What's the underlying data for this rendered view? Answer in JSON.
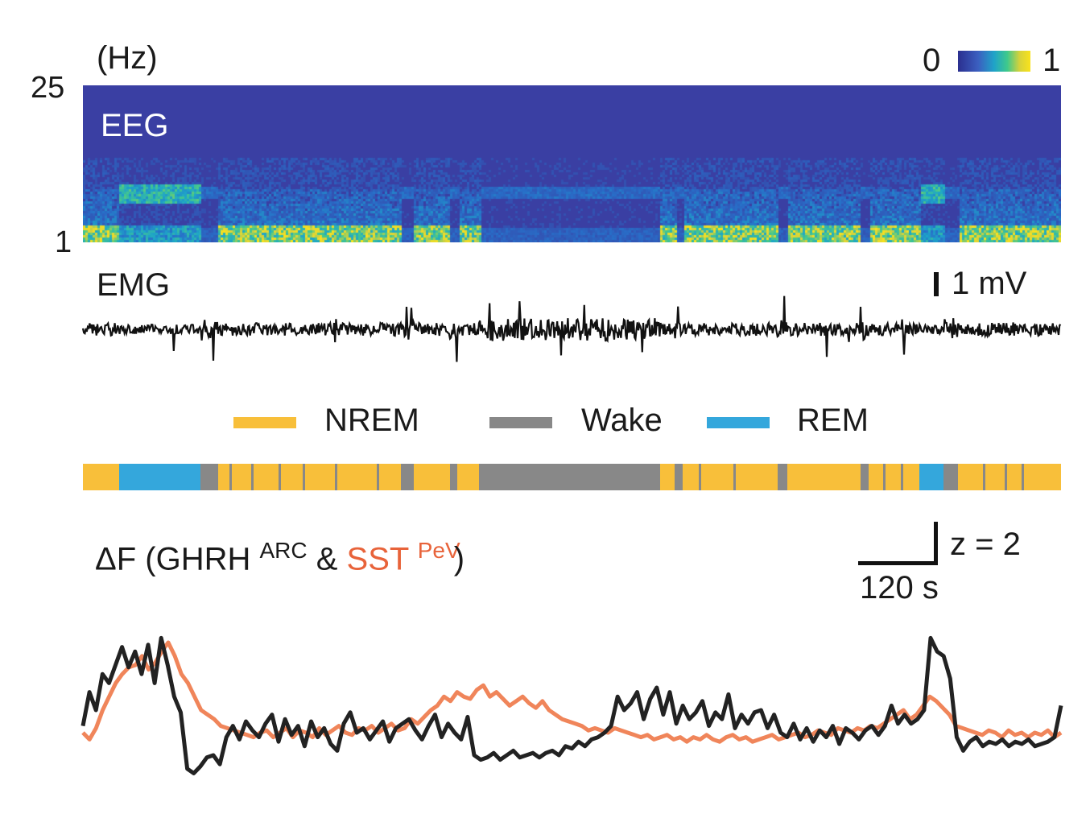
{
  "chart_data": [
    {
      "type": "heatmap",
      "title": "EEG",
      "ylabel": "(Hz)",
      "ylim": [
        1,
        25
      ],
      "y_ticks": [
        "25",
        "1"
      ],
      "colorbar": {
        "min": "0",
        "max": "1",
        "colors": [
          "#2b2f8f",
          "#3b5fc0",
          "#1fa3c8",
          "#3ec98c",
          "#d6d23a",
          "#f9e21c"
        ]
      },
      "background_color": "#3a3fa3",
      "bands_note": "high power at low frequency during NREM, theta band during REM"
    },
    {
      "type": "line",
      "title": "EMG",
      "scale_bar": "1 mV",
      "color": "#111111"
    },
    {
      "type": "bar",
      "legend": [
        {
          "name": "NREM",
          "color": "#f8bf3a"
        },
        {
          "name": "Wake",
          "color": "#888888"
        },
        {
          "name": "REM",
          "color": "#34a7dc"
        }
      ],
      "hypnogram": [
        {
          "state": "NREM",
          "start": 0,
          "end": 3.7
        },
        {
          "state": "REM",
          "start": 3.7,
          "end": 12.0
        },
        {
          "state": "Wake",
          "start": 12.0,
          "end": 13.8
        },
        {
          "state": "NREM",
          "start": 13.8,
          "end": 32.5
        },
        {
          "state": "Wake",
          "start": 32.5,
          "end": 33.8
        },
        {
          "state": "NREM",
          "start": 33.8,
          "end": 37.5
        },
        {
          "state": "Wake",
          "start": 37.5,
          "end": 38.3
        },
        {
          "state": "NREM",
          "start": 38.3,
          "end": 40.5
        },
        {
          "state": "Wake",
          "start": 40.5,
          "end": 59.0
        },
        {
          "state": "NREM",
          "start": 59.0,
          "end": 60.5
        },
        {
          "state": "Wake",
          "start": 60.5,
          "end": 61.3
        },
        {
          "state": "NREM",
          "start": 61.3,
          "end": 71.0
        },
        {
          "state": "Wake",
          "start": 71.0,
          "end": 72.0
        },
        {
          "state": "NREM",
          "start": 72.0,
          "end": 79.5
        },
        {
          "state": "Wake",
          "start": 79.5,
          "end": 80.3
        },
        {
          "state": "NREM",
          "start": 80.3,
          "end": 85.5
        },
        {
          "state": "REM",
          "start": 85.5,
          "end": 88.0
        },
        {
          "state": "Wake",
          "start": 88.0,
          "end": 89.5
        },
        {
          "state": "NREM",
          "start": 89.5,
          "end": 100
        }
      ]
    },
    {
      "type": "line",
      "title_prefix": "ΔF (GHRH",
      "title_sup1": "ARC",
      "title_mid": "&",
      "title_red": "SST",
      "title_sup2": "PeV",
      "title_suffix": ")",
      "scale_x": "120 s",
      "scale_y": "z = 2",
      "series": [
        {
          "name": "GHRH",
          "color": "#222222",
          "values": [
            0.3,
            1.8,
            1.0,
            2.6,
            2.2,
            3.0,
            3.8,
            2.9,
            3.6,
            2.6,
            3.9,
            2.2,
            4.2,
            3.0,
            1.6,
            0.9,
            -1.6,
            -1.8,
            -1.5,
            -1.1,
            -1.0,
            -1.4,
            -0.2,
            0.3,
            -0.3,
            0.5,
            0.1,
            -0.2,
            0.4,
            0.8,
            -0.4,
            0.6,
            -0.1,
            0.3,
            -0.6,
            0.5,
            -0.2,
            0.2,
            -0.5,
            -0.8,
            0.4,
            0.9,
            0.0,
            0.2,
            -0.3,
            0.1,
            0.5,
            -0.4,
            0.2,
            0.4,
            0.6,
            0.1,
            -0.3,
            0.3,
            0.8,
            -0.2,
            0.4,
            0.0,
            -0.3,
            0.7,
            -1.0,
            -1.2,
            -1.1,
            -0.9,
            -1.2,
            -1.0,
            -0.8,
            -1.1,
            -1.0,
            -0.9,
            -1.1,
            -0.9,
            -0.8,
            -1.0,
            -0.6,
            -0.7,
            -0.4,
            -0.6,
            -0.3,
            -0.2,
            0.0,
            0.3,
            1.6,
            1.0,
            1.3,
            1.8,
            0.6,
            1.5,
            2.0,
            0.8,
            1.8,
            0.4,
            1.2,
            0.6,
            0.9,
            1.4,
            0.3,
            0.9,
            0.6,
            1.7,
            0.2,
            0.8,
            0.4,
            0.9,
            1.0,
            0.2,
            0.8,
            0.0,
            -0.2,
            0.4,
            -0.3,
            0.2,
            -0.4,
            0.1,
            -0.2,
            0.3,
            -0.5,
            0.2,
            0.0,
            -0.3,
            0.1,
            0.3,
            -0.1,
            0.3,
            1.2,
            0.4,
            0.8,
            0.4,
            0.6,
            1.0,
            4.2,
            3.6,
            3.4,
            2.4,
            -0.2,
            -0.8,
            -0.4,
            -0.2,
            -0.6,
            -0.4,
            -0.5,
            -0.3,
            -0.6,
            -0.4,
            -0.5,
            -0.3,
            -0.6,
            -0.5,
            -0.4,
            -0.2,
            1.2
          ]
        },
        {
          "name": "SST",
          "color": "#f0855a",
          "values": [
            0.0,
            -0.3,
            0.2,
            1.0,
            1.6,
            2.2,
            2.6,
            2.9,
            3.0,
            3.4,
            2.8,
            3.1,
            3.6,
            4.0,
            3.4,
            2.6,
            2.2,
            1.6,
            1.0,
            0.8,
            0.6,
            0.3,
            0.2,
            0.1,
            0.0,
            -0.1,
            -0.2,
            0.0,
            0.1,
            -0.2,
            0.0,
            0.2,
            -0.2,
            0.1,
            0.0,
            -0.2,
            0.2,
            -0.1,
            0.1,
            0.3,
            0.0,
            -0.1,
            0.2,
            0.1,
            0.3,
            0.0,
            0.2,
            0.4,
            0.1,
            0.2,
            0.6,
            0.4,
            0.7,
            1.0,
            1.2,
            1.6,
            1.4,
            1.8,
            1.6,
            1.5,
            1.9,
            2.1,
            1.6,
            1.8,
            1.5,
            1.2,
            1.4,
            1.6,
            1.3,
            1.1,
            1.4,
            1.0,
            0.8,
            0.6,
            0.5,
            0.4,
            0.3,
            0.1,
            0.2,
            0.1,
            0.0,
            0.2,
            0.1,
            0.0,
            -0.1,
            -0.2,
            -0.1,
            -0.3,
            -0.2,
            -0.1,
            -0.3,
            -0.2,
            -0.4,
            -0.2,
            -0.3,
            -0.1,
            -0.3,
            -0.4,
            -0.2,
            -0.1,
            -0.3,
            -0.2,
            -0.4,
            -0.3,
            -0.2,
            -0.1,
            -0.3,
            -0.2,
            -0.1,
            0.0,
            -0.2,
            -0.1,
            0.1,
            0.0,
            -0.1,
            0.2,
            0.1,
            0.0,
            0.2,
            0.1,
            0.3,
            0.2,
            0.4,
            0.6,
            0.8,
            1.0,
            0.6,
            0.8,
            1.2,
            1.6,
            1.4,
            1.1,
            0.8,
            0.3,
            0.2,
            0.1,
            0.0,
            -0.1,
            0.1,
            0.0,
            -0.2,
            0.1,
            -0.1,
            0.0,
            -0.2,
            0.0,
            -0.1,
            0.1,
            -0.2,
            0.0
          ]
        }
      ]
    }
  ]
}
